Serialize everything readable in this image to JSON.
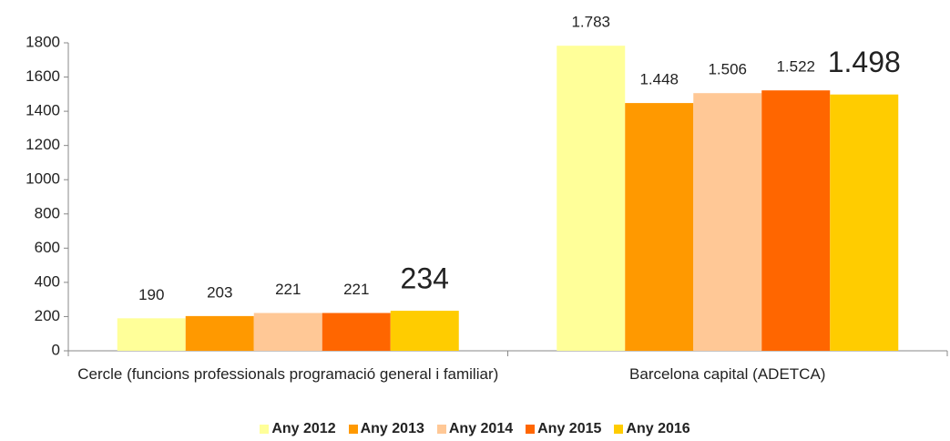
{
  "chart_data": {
    "type": "bar",
    "categories": [
      "Cercle (funcions professionals programació general i familiar)",
      "Barcelona capital (ADETCA)"
    ],
    "series": [
      {
        "name": "Any 2012",
        "color": "#ffff99",
        "values": [
          190,
          1783
        ],
        "value_labels": [
          "190",
          "1.783"
        ]
      },
      {
        "name": "Any 2013",
        "color": "#ff9900",
        "values": [
          203,
          1448
        ],
        "value_labels": [
          "203",
          "1.448"
        ]
      },
      {
        "name": "Any 2014",
        "color": "#ffc896",
        "values": [
          221,
          1506
        ],
        "value_labels": [
          "221",
          "1.506"
        ]
      },
      {
        "name": "Any 2015",
        "color": "#ff6600",
        "values": [
          221,
          1522
        ],
        "value_labels": [
          "221",
          "1.522"
        ]
      },
      {
        "name": "Any 2016",
        "color": "#ffcc00",
        "values": [
          234,
          1498
        ],
        "value_labels": [
          "234",
          "1.498"
        ]
      }
    ],
    "ylim": [
      0,
      1800
    ],
    "yticks": [
      0,
      200,
      400,
      600,
      800,
      1000,
      1200,
      1400,
      1600,
      1800
    ]
  }
}
